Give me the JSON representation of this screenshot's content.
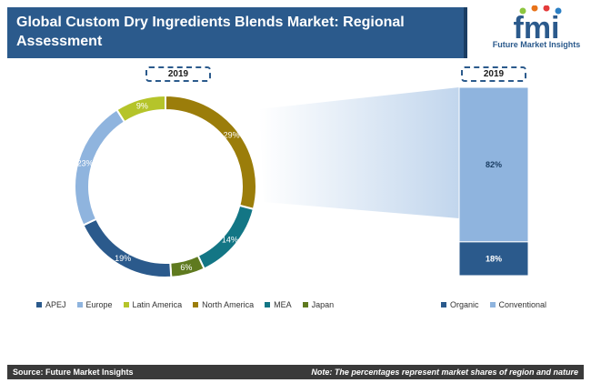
{
  "header": {
    "title_line1": "Global Custom Dry Ingredients Blends Market: Regional",
    "title_line2": "Assessment"
  },
  "logo": {
    "letters": "fmi",
    "text": "Future Market Insights",
    "primary_color": "#2b5a8c",
    "dot_colors": [
      "#8dc63f",
      "#e8731a",
      "#e43b3b",
      "#2b7fc4"
    ]
  },
  "chart_data": [
    {
      "type": "pie",
      "variant": "donut",
      "year_label": "2019",
      "slices": [
        {
          "name": "North America",
          "value": 29,
          "label": "29%",
          "color": "#9b7d0a"
        },
        {
          "name": "MEA",
          "value": 14,
          "label": "14%",
          "color": "#137685"
        },
        {
          "name": "Japan",
          "value": 6,
          "label": "6%",
          "color": "#5f7a1f"
        },
        {
          "name": "APEJ",
          "value": 19,
          "label": "19%",
          "color": "#2b5a8c"
        },
        {
          "name": "Europe",
          "value": 23,
          "label": "23%",
          "color": "#8fb4de"
        },
        {
          "name": "Latin America",
          "value": 9,
          "label": "9%",
          "color": "#b5c42a"
        }
      ],
      "legend": [
        {
          "name": "APEJ",
          "color": "#2b5a8c"
        },
        {
          "name": "Europe",
          "color": "#8fb4de"
        },
        {
          "name": "Latin America",
          "color": "#b5c42a"
        },
        {
          "name": "North America",
          "color": "#9b7d0a"
        },
        {
          "name": "MEA",
          "color": "#137685"
        },
        {
          "name": "Japan",
          "color": "#5f7a1f"
        }
      ],
      "legend_position": "bottom"
    },
    {
      "type": "bar",
      "variant": "stacked-100",
      "year_label": "2019",
      "categories": [
        "2019"
      ],
      "series": [
        {
          "name": "Organic",
          "values": [
            18
          ],
          "label": "18%",
          "color": "#2b5a8c"
        },
        {
          "name": "Conventional",
          "values": [
            82
          ],
          "label": "82%",
          "color": "#8fb4de"
        }
      ],
      "ylim": [
        0,
        100
      ],
      "legend_position": "bottom"
    }
  ],
  "footer": {
    "source": "Source: Future Market Insights",
    "note": "Note: The percentages represent market shares of region and nature"
  }
}
